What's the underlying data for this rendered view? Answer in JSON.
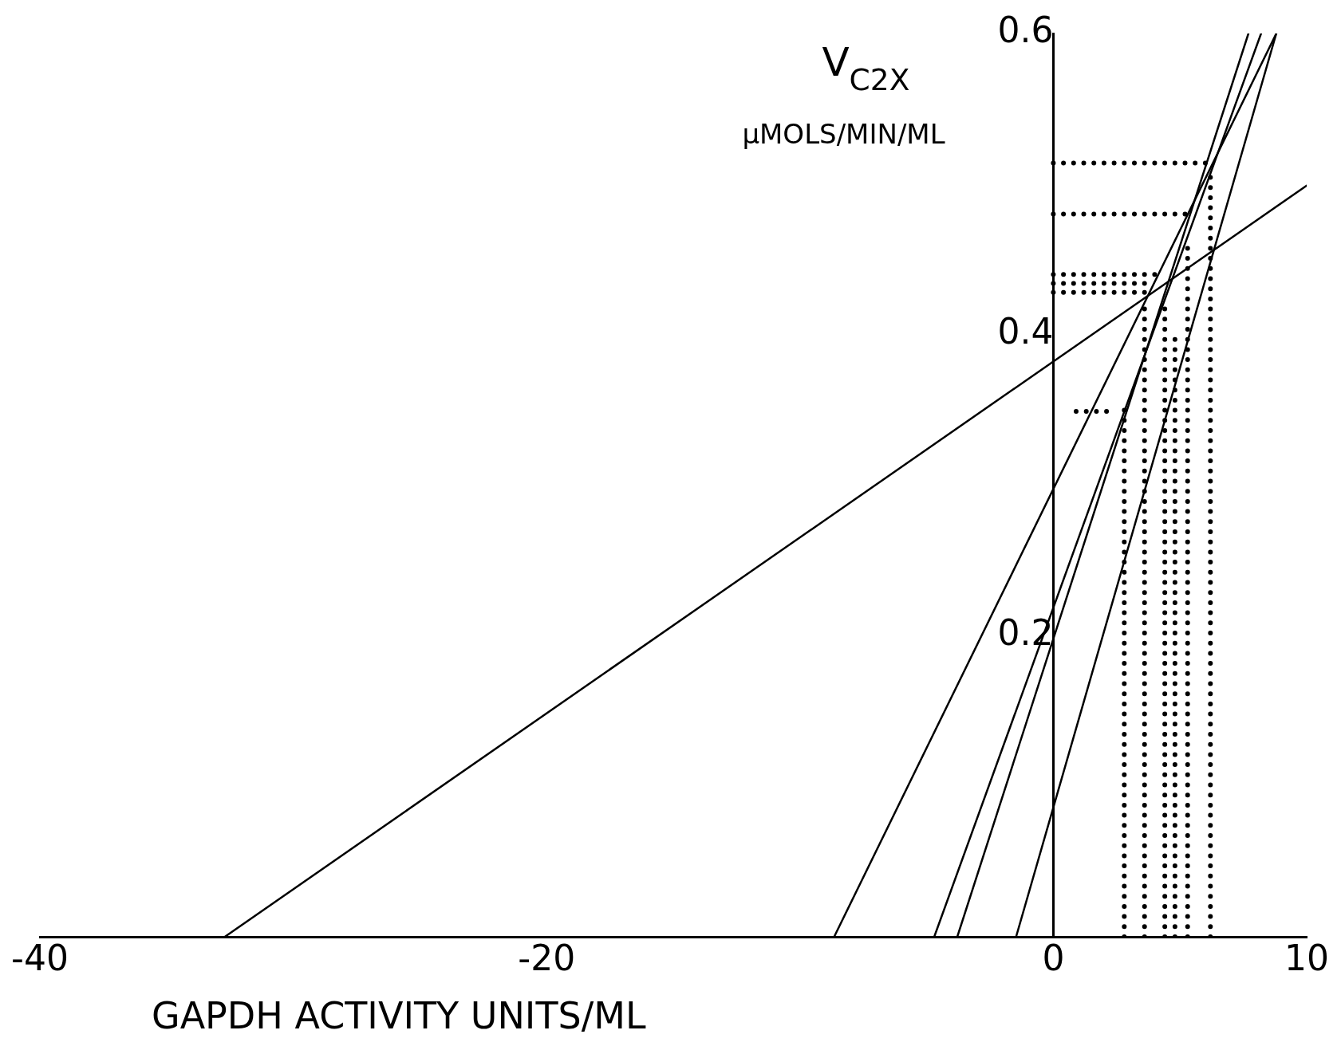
{
  "chart_data": {
    "type": "line",
    "xlabel": "GAPDH ACTIVITY UNITS/ML",
    "ylabel": "V$_{C2X}$",
    "annotations": [
      "μMOLS/MIN/ML"
    ],
    "xlim": [
      -40,
      10
    ],
    "xticks": [
      -40,
      -20,
      0,
      10
    ],
    "ylim": [
      0,
      0.6
    ],
    "yticks": [
      0.2,
      0.4,
      0.6
    ],
    "grid": false,
    "legend": false,
    "marker": "none",
    "series": [
      {
        "type": "line",
        "color": "#000000",
        "line_style": "solid",
        "x": [
          -32.7,
          10
        ],
        "values": [
          0,
          0.499
        ]
      },
      {
        "type": "line",
        "color": "#000000",
        "line_style": "solid",
        "x": [
          -8.65,
          8.8
        ],
        "values": [
          0,
          0.6
        ]
      },
      {
        "type": "line",
        "color": "#000000",
        "line_style": "solid",
        "x": [
          -4.7,
          8.2
        ],
        "values": [
          0,
          0.6
        ]
      },
      {
        "type": "line",
        "color": "#000000",
        "line_style": "solid",
        "x": [
          -3.79,
          7.7
        ],
        "values": [
          0,
          0.6
        ]
      },
      {
        "type": "line",
        "color": "#000000",
        "line_style": "solid",
        "x": [
          -1.47,
          8.8
        ],
        "values": [
          0,
          0.6
        ]
      },
      {
        "type": "line",
        "color": "#000000",
        "line_style": "dotted",
        "x": [
          0,
          6.2
        ],
        "values": [
          0.514,
          0.514
        ]
      },
      {
        "type": "line",
        "color": "#000000",
        "line_style": "dotted",
        "x": [
          0,
          5.3
        ],
        "values": [
          0.48,
          0.48
        ]
      },
      {
        "type": "line",
        "color": "#000000",
        "line_style": "dotted",
        "x": [
          0,
          4.1
        ],
        "values": [
          0.44,
          0.44
        ]
      },
      {
        "type": "line",
        "color": "#000000",
        "line_style": "dotted",
        "x": [
          0,
          3.8
        ],
        "values": [
          0.434,
          0.434
        ]
      },
      {
        "type": "line",
        "color": "#000000",
        "line_style": "dotted",
        "x": [
          0,
          3.6
        ],
        "values": [
          0.428,
          0.428
        ]
      },
      {
        "type": "line",
        "color": "#000000",
        "line_style": "dotted",
        "x": [
          0.9,
          2.1
        ],
        "values": [
          0.349,
          0.349
        ]
      },
      {
        "type": "line",
        "color": "#000000",
        "line_style": "dotted",
        "x": [
          2.8,
          2.8
        ],
        "values": [
          0,
          0.35
        ]
      },
      {
        "type": "line",
        "color": "#000000",
        "line_style": "dotted",
        "x": [
          3.6,
          3.6
        ],
        "values": [
          0,
          0.42
        ]
      },
      {
        "type": "line",
        "color": "#000000",
        "line_style": "dotted",
        "x": [
          4.4,
          4.4
        ],
        "values": [
          0,
          0.42
        ]
      },
      {
        "type": "line",
        "color": "#000000",
        "line_style": "dotted",
        "x": [
          4.8,
          4.8
        ],
        "values": [
          0,
          0.4
        ]
      },
      {
        "type": "line",
        "color": "#000000",
        "line_style": "dotted",
        "x": [
          5.3,
          5.3
        ],
        "values": [
          0,
          0.46
        ]
      },
      {
        "type": "line",
        "color": "#000000",
        "line_style": "dotted",
        "x": [
          6.2,
          6.2
        ],
        "values": [
          0,
          0.51
        ]
      }
    ]
  }
}
